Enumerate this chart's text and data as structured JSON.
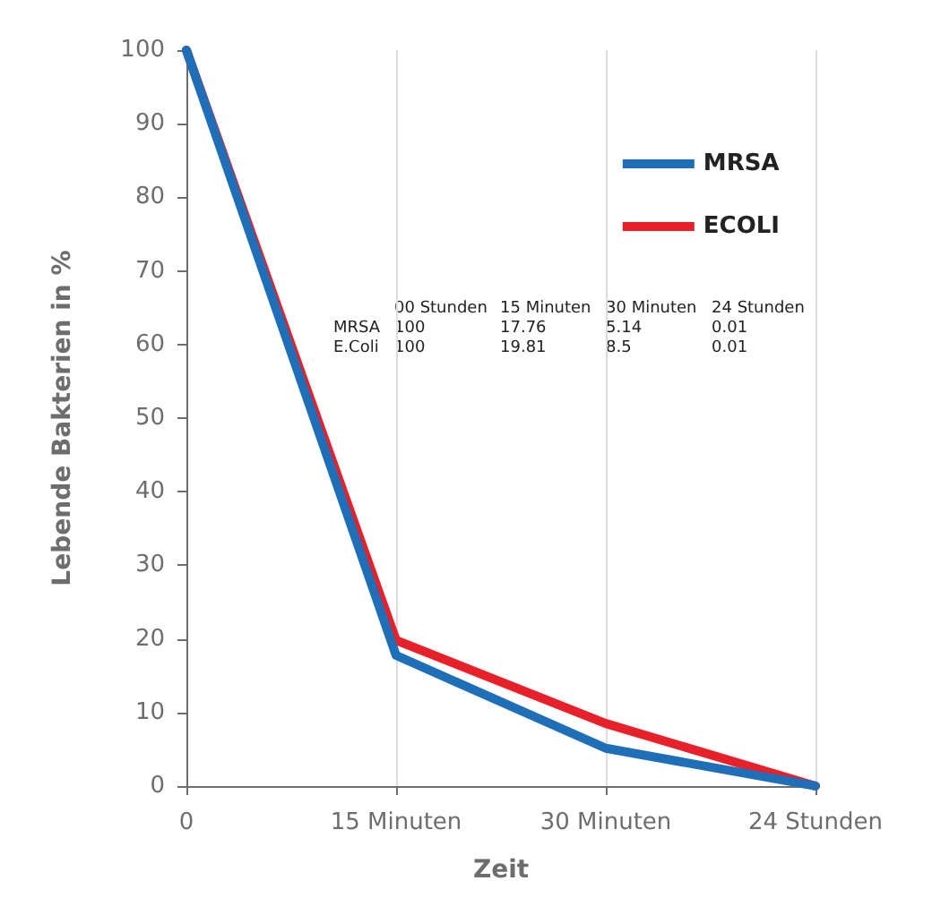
{
  "chart_data": {
    "type": "line",
    "xlabel": "Zeit",
    "ylabel": "Lebende Bakterien in %",
    "categories": [
      "0",
      "15 Minuten",
      "30 Minuten",
      "24 Stunden"
    ],
    "series": [
      {
        "name": "MRSA",
        "color": "#1f6fb8",
        "values": [
          100,
          17.76,
          5.14,
          0.01
        ]
      },
      {
        "name": "ECOLI",
        "color": "#e8202a",
        "values": [
          100,
          19.81,
          8.5,
          0.01
        ]
      }
    ],
    "ylim": [
      0,
      100
    ],
    "yticks": [
      0,
      10,
      20,
      30,
      40,
      50,
      60,
      70,
      80,
      90,
      100
    ],
    "grid": "x",
    "legend": "top right",
    "marker": "none",
    "line_style": "solid",
    "annotations": [
      "00 Stunden",
      "15 Minuten",
      "30 Minuten",
      "24 Stunden",
      "MRSA",
      "100",
      "17.76",
      "5.14",
      "0.01",
      "E.Coli",
      "100",
      "19.81",
      "8.5",
      "0.01"
    ]
  }
}
